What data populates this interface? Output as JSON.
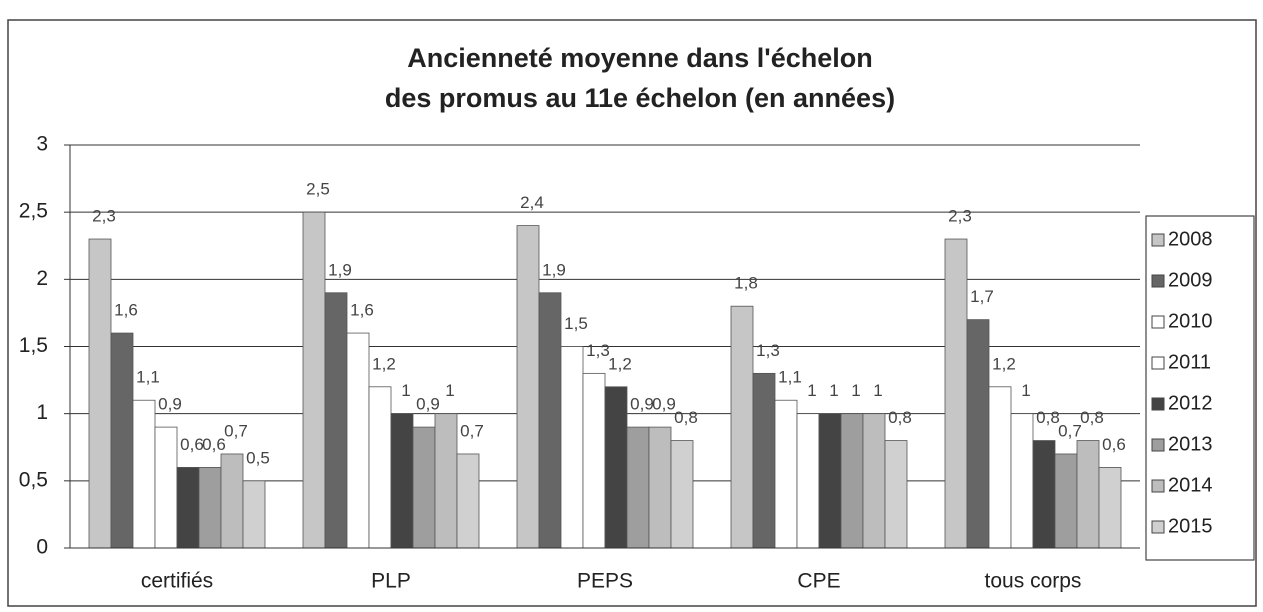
{
  "chart_data": {
    "type": "bar",
    "title": [
      "Ancienneté moyenne dans l'échelon",
      "des promus au 11e échelon (en années)"
    ],
    "categories": [
      "certifiés",
      "PLP",
      "PEPS",
      "CPE",
      "tous corps"
    ],
    "series": [
      {
        "name": "2008",
        "color": "#c6c6c6",
        "values": [
          2.3,
          2.5,
          2.4,
          1.8,
          2.3
        ],
        "value_labels": [
          "2,3",
          "2,5",
          "2,4",
          "1,8",
          "2,3"
        ]
      },
      {
        "name": "2009",
        "color": "#666666",
        "values": [
          1.6,
          1.9,
          1.9,
          1.3,
          1.7
        ],
        "value_labels": [
          "1,6",
          "1,9",
          "1,9",
          "1,3",
          "1,7"
        ]
      },
      {
        "name": "2010",
        "color": "#ffffff",
        "values": [
          1.1,
          1.6,
          1.5,
          1.1,
          1.2
        ],
        "value_labels": [
          "1,1",
          "1,6",
          "1,5",
          "1,1",
          "1,2"
        ]
      },
      {
        "name": "2011",
        "color": "#ffffff",
        "values": [
          0.9,
          1.2,
          1.3,
          1,
          1
        ],
        "value_labels": [
          "0,9",
          "1,2",
          "1,3",
          "1",
          "1"
        ]
      },
      {
        "name": "2012",
        "color": "#444444",
        "values": [
          0.6,
          1,
          1.2,
          1,
          0.8
        ],
        "value_labels": [
          "0,6",
          "1",
          "1,2",
          "1",
          "0,8"
        ]
      },
      {
        "name": "2013",
        "color": "#9e9e9e",
        "values": [
          0.6,
          0.9,
          0.9,
          1,
          0.7
        ],
        "value_labels": [
          "0,6",
          "0,9",
          "0,9",
          "1",
          "0,7"
        ]
      },
      {
        "name": "2014",
        "color": "#bdbdbd",
        "values": [
          0.7,
          1,
          0.9,
          1,
          0.8
        ],
        "value_labels": [
          "0,7",
          "1",
          "0,9",
          "1",
          "0,8"
        ]
      },
      {
        "name": "2015",
        "color": "#d0d0d0",
        "values": [
          0.5,
          0.7,
          0.8,
          0.8,
          0.6
        ],
        "value_labels": [
          "0,5",
          "0,7",
          "0,8",
          "0,8",
          "0,6"
        ]
      }
    ],
    "ylim": [
      0,
      3
    ],
    "yticks": [
      0,
      {
        "value": 0.5,
        "label": "0,5"
      },
      1,
      {
        "value": 1.5,
        "label": "1,5"
      },
      2,
      {
        "value": 2.5,
        "label": "2,5"
      },
      3
    ],
    "grid": true,
    "legend": "right"
  }
}
